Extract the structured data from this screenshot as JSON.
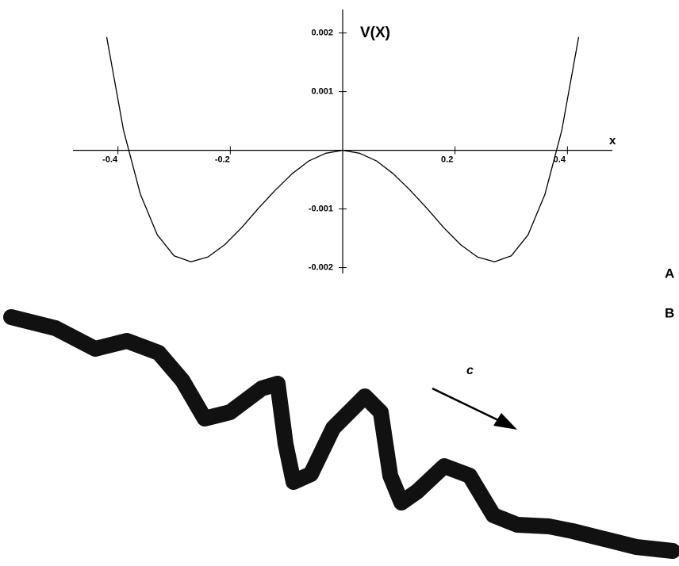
{
  "chart_data": {
    "type": "line",
    "x_label": "x",
    "y_label": "V(X)",
    "x": [
      -0.42,
      -0.39,
      -0.36,
      -0.33,
      -0.3,
      -0.27,
      -0.24,
      -0.21,
      -0.18,
      -0.15,
      -0.12,
      -0.09,
      -0.06,
      -0.03,
      0,
      0.03,
      0.06,
      0.09,
      0.12,
      0.15,
      0.18,
      0.21,
      0.24,
      0.27,
      0.3,
      0.33,
      0.36,
      0.39,
      0.42
    ],
    "values": [
      0.00193,
      0.00034,
      -0.00075,
      -0.00144,
      -0.0018,
      -0.0019,
      -0.00182,
      -0.00161,
      -0.00132,
      -0.00099,
      -0.00068,
      -0.0004,
      -0.00018,
      -5e-05,
      0,
      -5e-05,
      -0.00018,
      -0.0004,
      -0.00068,
      -0.00099,
      -0.00132,
      -0.00161,
      -0.00182,
      -0.0019,
      -0.0018,
      -0.00144,
      -0.00075,
      0.00034,
      0.00193
    ],
    "color": "#000000",
    "xlim": [
      -0.48,
      0.48
    ],
    "ylim": [
      -0.0021,
      0.0024
    ],
    "xticks": [
      -0.4,
      -0.2,
      0.2,
      0.4
    ],
    "yticks": [
      0.002,
      0.001,
      -0.001,
      -0.002
    ]
  },
  "panels": {
    "a": "A",
    "b": "B"
  },
  "drawing": {
    "arrow_label": "c"
  }
}
